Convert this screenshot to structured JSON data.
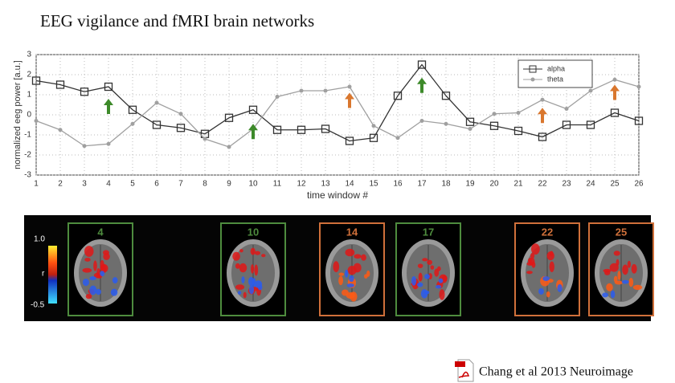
{
  "title": "EEG vigilance and fMRI brain networks",
  "chart_data": {
    "type": "line",
    "y_label": "normalized eeg power [a.u.]",
    "x_label": "time window #",
    "x": [
      1,
      2,
      3,
      4,
      5,
      6,
      7,
      8,
      9,
      10,
      11,
      12,
      13,
      14,
      15,
      16,
      17,
      18,
      19,
      20,
      21,
      22,
      23,
      24,
      25,
      26
    ],
    "xlim": [
      1,
      26
    ],
    "xticks": [
      1,
      2,
      3,
      4,
      5,
      6,
      7,
      8,
      9,
      10,
      11,
      12,
      13,
      14,
      15,
      16,
      17,
      18,
      19,
      20,
      21,
      22,
      23,
      24,
      25,
      26
    ],
    "ylim": [
      -3,
      3
    ],
    "yticks": [
      -3,
      -2,
      -1,
      0,
      1,
      2,
      3
    ],
    "grid": true,
    "legend": "top-right",
    "series": [
      {
        "name": "alpha",
        "color": "#333333",
        "values": [
          1.7,
          1.5,
          1.15,
          1.4,
          0.25,
          -0.5,
          -0.65,
          -0.95,
          -0.15,
          0.25,
          -0.75,
          -0.75,
          -0.7,
          -1.3,
          -1.15,
          0.95,
          2.5,
          0.95,
          -0.35,
          -0.55,
          -0.8,
          -1.1,
          -0.5,
          -0.5,
          0.1,
          -0.3
        ]
      },
      {
        "name": "theta",
        "color": "#a0a0a0",
        "values": [
          -0.3,
          -0.75,
          -1.55,
          -1.45,
          -0.45,
          0.6,
          0.05,
          -1.2,
          -1.6,
          -0.7,
          0.9,
          1.2,
          1.2,
          1.4,
          -0.55,
          -1.15,
          -0.3,
          -0.45,
          -0.7,
          0.05,
          0.1,
          0.75,
          0.3,
          1.2,
          1.75,
          1.4
        ]
      }
    ],
    "arrows": [
      {
        "x": 4,
        "y": 0.8,
        "color": "#3d8a2a"
      },
      {
        "x": 10,
        "y": -0.45,
        "color": "#3d8a2a"
      },
      {
        "x": 17,
        "y": 1.85,
        "color": "#3d8a2a"
      },
      {
        "x": 14,
        "y": 1.1,
        "color": "#d9772e"
      },
      {
        "x": 22,
        "y": 0.35,
        "color": "#d9772e"
      },
      {
        "x": 25,
        "y": 1.5,
        "color": "#d9772e"
      }
    ]
  },
  "colorbar": {
    "top": "1.0",
    "label": "r",
    "bottom": "-0.5"
  },
  "panels": [
    {
      "label": "4",
      "color": "#4e8c3e"
    },
    {
      "label": "10",
      "color": "#4e8c3e"
    },
    {
      "label": "14",
      "color": "#d0703a"
    },
    {
      "label": "17",
      "color": "#4e8c3e"
    },
    {
      "label": "22",
      "color": "#d0703a"
    },
    {
      "label": "25",
      "color": "#d0703a"
    }
  ],
  "citation": "Chang et al 2013 Neuroimage"
}
